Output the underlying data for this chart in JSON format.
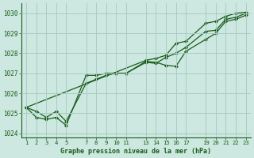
{
  "title": "Graphe pression niveau de la mer (hPa)",
  "background_color": "#cce8e0",
  "grid_color": "#aaccc4",
  "line_color": "#1a5c1a",
  "marker_color": "#1a5c1a",
  "xlim": [
    0.5,
    23.5
  ],
  "ylim": [
    1023.8,
    1030.5
  ],
  "xticks": [
    1,
    2,
    3,
    4,
    5,
    7,
    8,
    9,
    10,
    11,
    13,
    14,
    15,
    16,
    17,
    19,
    20,
    21,
    22,
    23
  ],
  "yticks": [
    1024,
    1025,
    1026,
    1027,
    1028,
    1029,
    1030
  ],
  "series": [
    {
      "x": [
        1,
        2,
        3,
        4,
        5,
        7,
        8,
        9,
        10,
        11,
        13,
        14,
        15,
        16,
        17,
        19,
        20,
        21,
        22,
        23
      ],
      "y": [
        1025.3,
        1024.8,
        1024.7,
        1024.8,
        1024.4,
        1026.9,
        1026.9,
        1027.0,
        1027.0,
        1027.0,
        1027.55,
        1027.5,
        1027.8,
        1028.0,
        1028.3,
        1029.1,
        1029.15,
        1029.7,
        1029.8,
        1030.0
      ]
    },
    {
      "x": [
        1,
        2,
        3,
        4,
        5,
        7,
        8,
        9,
        10,
        11,
        13,
        14,
        15,
        16,
        17,
        19,
        20,
        21,
        22,
        23
      ],
      "y": [
        1025.3,
        1025.1,
        1024.8,
        1025.1,
        1024.6,
        1026.5,
        1026.7,
        1026.9,
        1027.0,
        1027.0,
        1027.6,
        1027.55,
        1027.4,
        1027.35,
        1028.1,
        1028.7,
        1029.0,
        1029.6,
        1029.7,
        1029.9
      ]
    },
    {
      "x": [
        1,
        13,
        14,
        15,
        16,
        17,
        19,
        20,
        21,
        22,
        23
      ],
      "y": [
        1025.3,
        1027.65,
        1027.75,
        1027.9,
        1028.5,
        1028.6,
        1029.5,
        1029.6,
        1029.85,
        1030.0,
        1030.05
      ]
    }
  ]
}
